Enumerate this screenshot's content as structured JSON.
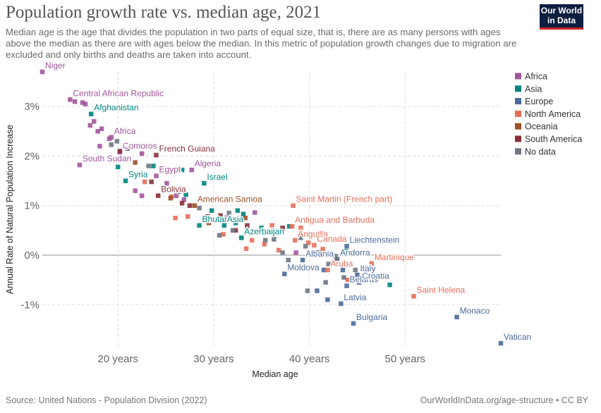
{
  "header": {
    "title": "Population growth rate vs. median age, 2021",
    "subtitle": "Median age is the age that divides the population in two parts of equal size, that is, there are as many persons with ages above the median as there are with ages below the median. In this metric of population growth changes due to migration are excluded and only births and deaths are taken into account.",
    "logo_line1": "Our World",
    "logo_line2": "in Data"
  },
  "footer": {
    "source": "Source: United Nations - Population Division (2022)",
    "credit": "OurWorldInData.org/age-structure • CC BY"
  },
  "chart_data": {
    "type": "scatter",
    "title": "Population growth rate vs. median age, 2021",
    "xlabel": "Median age",
    "ylabel": "Annual Rate of Natural Population Increase",
    "xlim": [
      12.1,
      60
    ],
    "ylim": [
      -1.85,
      3.7
    ],
    "x_ticks": [
      {
        "value": 20,
        "label": "20 years"
      },
      {
        "value": 30,
        "label": "30 years"
      },
      {
        "value": 40,
        "label": "40 years"
      },
      {
        "value": 50,
        "label": "50 years"
      }
    ],
    "y_ticks": [
      {
        "value": 3,
        "label": "3%"
      },
      {
        "value": 2,
        "label": "2%"
      },
      {
        "value": 1,
        "label": "1%"
      },
      {
        "value": 0,
        "label": "0%"
      },
      {
        "value": -1,
        "label": "-1%"
      }
    ],
    "grid": true,
    "legend_position": "right",
    "legend": [
      {
        "name": "Africa",
        "color": "#a2559c"
      },
      {
        "name": "Asia",
        "color": "#00847e"
      },
      {
        "name": "Europe",
        "color": "#4c6a9c"
      },
      {
        "name": "North America",
        "color": "#e56e5a"
      },
      {
        "name": "Oceania",
        "color": "#9a5129"
      },
      {
        "name": "South America",
        "color": "#883039"
      },
      {
        "name": "No data",
        "color": "#6d7783"
      }
    ],
    "series": [
      {
        "name": "Africa",
        "color": "#a2559c",
        "points": [
          {
            "x": 12.1,
            "y": 3.7,
            "label": "Niger"
          },
          {
            "x": 15.0,
            "y": 3.14,
            "label": "Central African Republic"
          },
          {
            "x": 16.6,
            "y": 3.05
          },
          {
            "x": 16.3,
            "y": 3.08
          },
          {
            "x": 15.5,
            "y": 3.1
          },
          {
            "x": 17.1,
            "y": 2.62
          },
          {
            "x": 17.5,
            "y": 2.7
          },
          {
            "x": 17.9,
            "y": 2.5
          },
          {
            "x": 18.3,
            "y": 2.55
          },
          {
            "x": 19.1,
            "y": 2.35
          },
          {
            "x": 18.1,
            "y": 2.2
          },
          {
            "x": 19.3,
            "y": 2.38,
            "label": "Africa"
          },
          {
            "x": 16.0,
            "y": 1.82,
            "label": "South Sudan"
          },
          {
            "x": 20.2,
            "y": 2.08,
            "label": "Comoros"
          },
          {
            "x": 24.0,
            "y": 1.6,
            "label": "Egypt"
          },
          {
            "x": 27.7,
            "y": 1.72,
            "label": "Algeria"
          },
          {
            "x": 22.5,
            "y": 2.05
          },
          {
            "x": 21.8,
            "y": 1.3
          },
          {
            "x": 22.5,
            "y": 1.2
          },
          {
            "x": 25.1,
            "y": 1.45
          },
          {
            "x": 26.1,
            "y": 1.2
          },
          {
            "x": 26.9,
            "y": 1.12
          },
          {
            "x": 31.3,
            "y": 0.75
          },
          {
            "x": 34.3,
            "y": 0.86
          },
          {
            "x": 38.6,
            "y": 0.05
          }
        ]
      },
      {
        "name": "Asia",
        "color": "#00847e",
        "points": [
          {
            "x": 17.2,
            "y": 2.85,
            "label": "Afghanistan"
          },
          {
            "x": 20.0,
            "y": 1.78
          },
          {
            "x": 20.8,
            "y": 1.5,
            "label": "Syria"
          },
          {
            "x": 23.7,
            "y": 1.8
          },
          {
            "x": 26.7,
            "y": 1.72
          },
          {
            "x": 29.0,
            "y": 1.45,
            "label": "Israel"
          },
          {
            "x": 27.1,
            "y": 1.22
          },
          {
            "x": 28.5,
            "y": 0.6,
            "label": "Bhutan"
          },
          {
            "x": 29.8,
            "y": 0.9
          },
          {
            "x": 31.1,
            "y": 0.6,
            "label": "Asia"
          },
          {
            "x": 32.3,
            "y": 0.65
          },
          {
            "x": 32.5,
            "y": 0.9
          },
          {
            "x": 33.1,
            "y": 0.83
          },
          {
            "x": 32.9,
            "y": 0.35,
            "label": "Azerbaijan"
          },
          {
            "x": 37.9,
            "y": 0.58
          },
          {
            "x": 35.0,
            "y": 0.55
          },
          {
            "x": 43.8,
            "y": 0.08
          },
          {
            "x": 48.4,
            "y": -0.6
          }
        ]
      },
      {
        "name": "Europe",
        "color": "#4c6a9c",
        "points": [
          {
            "x": 43.9,
            "y": 0.18,
            "label": "Liechtenstein"
          },
          {
            "x": 42.9,
            "y": -0.08,
            "label": "Andorra"
          },
          {
            "x": 39.3,
            "y": -0.1,
            "label": "Albania"
          },
          {
            "x": 37.4,
            "y": -0.38,
            "label": "Moldova"
          },
          {
            "x": 45.0,
            "y": -0.4,
            "label": "Italy"
          },
          {
            "x": 43.9,
            "y": -0.62,
            "label": "Belarus"
          },
          {
            "x": 45.2,
            "y": -0.55,
            "label": "Croatia"
          },
          {
            "x": 43.3,
            "y": -0.98,
            "label": "Latvia"
          },
          {
            "x": 44.6,
            "y": -1.38,
            "label": "Bulgaria"
          },
          {
            "x": 55.4,
            "y": -1.25,
            "label": "Monaco"
          },
          {
            "x": 60.0,
            "y": -1.78,
            "label": "Vatican"
          },
          {
            "x": 41.5,
            "y": -0.3
          },
          {
            "x": 40.8,
            "y": -0.72
          },
          {
            "x": 43.5,
            "y": -0.3
          },
          {
            "x": 41.9,
            "y": -0.9
          }
        ]
      },
      {
        "name": "North America",
        "color": "#e56e5a",
        "points": [
          {
            "x": 38.3,
            "y": 1.0,
            "label": "Saint Martin (French part)"
          },
          {
            "x": 38.2,
            "y": 0.58,
            "label": "Antigua and Barbuda"
          },
          {
            "x": 38.5,
            "y": 0.3,
            "label": "Anguilla"
          },
          {
            "x": 40.5,
            "y": 0.2,
            "label": "Canada"
          },
          {
            "x": 41.9,
            "y": -0.3,
            "label": "Aruba"
          },
          {
            "x": 46.5,
            "y": -0.17,
            "label": "Martinique"
          },
          {
            "x": 50.9,
            "y": -0.83,
            "label": "Saint Helena"
          },
          {
            "x": 22.8,
            "y": 1.48
          },
          {
            "x": 25.6,
            "y": 1.18
          },
          {
            "x": 27.3,
            "y": 0.78
          },
          {
            "x": 31.0,
            "y": 0.42
          },
          {
            "x": 33.5,
            "y": 0.5
          },
          {
            "x": 34.0,
            "y": 0.3
          },
          {
            "x": 33.4,
            "y": 0.13
          },
          {
            "x": 36.1,
            "y": 0.6
          },
          {
            "x": 35.3,
            "y": 0.22
          },
          {
            "x": 36.8,
            "y": 0.1
          },
          {
            "x": 39.1,
            "y": 0.55
          },
          {
            "x": 39.9,
            "y": 0.25
          },
          {
            "x": 41.4,
            "y": 0.12
          },
          {
            "x": 26.0,
            "y": 0.75
          },
          {
            "x": 44.0,
            "y": -0.5
          }
        ]
      },
      {
        "name": "Oceania",
        "color": "#9a5129",
        "points": [
          {
            "x": 28.0,
            "y": 1.0,
            "label": "American Samoa"
          },
          {
            "x": 21.8,
            "y": 1.87
          },
          {
            "x": 25.5,
            "y": 1.15
          },
          {
            "x": 29.5,
            "y": 0.65
          },
          {
            "x": 33.3,
            "y": 0.75
          },
          {
            "x": 36.6,
            "y": 0.45
          }
        ]
      },
      {
        "name": "South America",
        "color": "#883039",
        "points": [
          {
            "x": 24.0,
            "y": 2.02,
            "label": "French Guiana"
          },
          {
            "x": 24.2,
            "y": 1.2,
            "label": "Bolivia"
          },
          {
            "x": 20.2,
            "y": 2.1
          },
          {
            "x": 23.5,
            "y": 1.48
          },
          {
            "x": 26.7,
            "y": 1.05
          },
          {
            "x": 27.5,
            "y": 1.0
          },
          {
            "x": 29.4,
            "y": 0.78
          },
          {
            "x": 30.7,
            "y": 0.8
          },
          {
            "x": 32.3,
            "y": 0.5
          },
          {
            "x": 33.5,
            "y": 0.6
          },
          {
            "x": 37.2,
            "y": 0.55
          }
        ]
      },
      {
        "name": "No data",
        "color": "#6d7783",
        "points": [
          {
            "x": 19.3,
            "y": 2.23
          },
          {
            "x": 19.9,
            "y": 2.3
          },
          {
            "x": 21.0,
            "y": 2.15
          },
          {
            "x": 23.2,
            "y": 1.8
          },
          {
            "x": 26.3,
            "y": 1.28
          },
          {
            "x": 28.5,
            "y": 0.95
          },
          {
            "x": 29.9,
            "y": 0.7
          },
          {
            "x": 31.6,
            "y": 0.85
          },
          {
            "x": 30.6,
            "y": 0.4
          },
          {
            "x": 32.0,
            "y": 0.5
          },
          {
            "x": 35.4,
            "y": 0.3
          },
          {
            "x": 36.3,
            "y": 0.32
          },
          {
            "x": 37.2,
            "y": 0.05
          },
          {
            "x": 37.8,
            "y": -0.1
          },
          {
            "x": 39.1,
            "y": 0.35
          },
          {
            "x": 39.6,
            "y": 0.18
          },
          {
            "x": 40.9,
            "y": 0.05
          },
          {
            "x": 42.0,
            "y": -0.18
          },
          {
            "x": 42.7,
            "y": -0.02
          },
          {
            "x": 41.7,
            "y": -0.55
          },
          {
            "x": 39.8,
            "y": -0.72
          },
          {
            "x": 42.9,
            "y": -0.1
          },
          {
            "x": 44.2,
            "y": -0.2
          },
          {
            "x": 44.8,
            "y": -0.3
          },
          {
            "x": 46.2,
            "y": -0.5
          },
          {
            "x": 43.6,
            "y": -0.45
          },
          {
            "x": 45.7,
            "y": -0.25
          }
        ]
      }
    ]
  }
}
